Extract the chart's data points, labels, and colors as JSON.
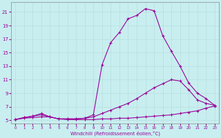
{
  "xlabel": "Windchill (Refroidissement éolien,°C)",
  "background_color": "#c8eef0",
  "grid_color": "#b8dfe0",
  "line_color": "#990099",
  "xlim": [
    -0.5,
    23.5
  ],
  "ylim": [
    4.5,
    22.5
  ],
  "xticks": [
    0,
    1,
    2,
    3,
    4,
    5,
    6,
    7,
    8,
    9,
    10,
    11,
    12,
    13,
    14,
    15,
    16,
    17,
    18,
    19,
    20,
    21,
    22,
    23
  ],
  "yticks": [
    5,
    7,
    9,
    11,
    13,
    15,
    17,
    19,
    21
  ],
  "line1_x": [
    0,
    1,
    2,
    3,
    4,
    5,
    6,
    7,
    8,
    9,
    10,
    11,
    12,
    13,
    14,
    15,
    16,
    17,
    18,
    19,
    20,
    21,
    22,
    23
  ],
  "line1_y": [
    5.1,
    5.3,
    5.4,
    5.5,
    5.5,
    5.2,
    5.1,
    5.1,
    5.1,
    5.1,
    5.2,
    5.2,
    5.3,
    5.3,
    5.4,
    5.5,
    5.6,
    5.7,
    5.8,
    6.0,
    6.2,
    6.4,
    6.8,
    7.1
  ],
  "line2_x": [
    0,
    1,
    2,
    3,
    4,
    5,
    6,
    7,
    8,
    9,
    10,
    11,
    12,
    13,
    14,
    15,
    16,
    17,
    18,
    19,
    20,
    21,
    22,
    23
  ],
  "line2_y": [
    5.1,
    5.4,
    5.6,
    5.8,
    5.5,
    5.2,
    5.2,
    5.2,
    5.3,
    5.5,
    6.0,
    6.5,
    7.0,
    7.5,
    8.2,
    9.0,
    9.8,
    10.4,
    11.0,
    10.8,
    9.5,
    8.0,
    7.5,
    7.2
  ],
  "line3_x": [
    0,
    1,
    2,
    3,
    4,
    5,
    6,
    7,
    8,
    9,
    10,
    11,
    12,
    13,
    14,
    15,
    16,
    17,
    18,
    19,
    20,
    21,
    22,
    23
  ],
  "line3_y": [
    5.1,
    5.4,
    5.6,
    6.0,
    5.5,
    5.2,
    5.2,
    5.2,
    5.3,
    5.8,
    13.2,
    16.5,
    18.0,
    20.0,
    20.5,
    21.5,
    21.2,
    17.5,
    15.2,
    13.0,
    10.5,
    9.0,
    8.2,
    7.2
  ]
}
